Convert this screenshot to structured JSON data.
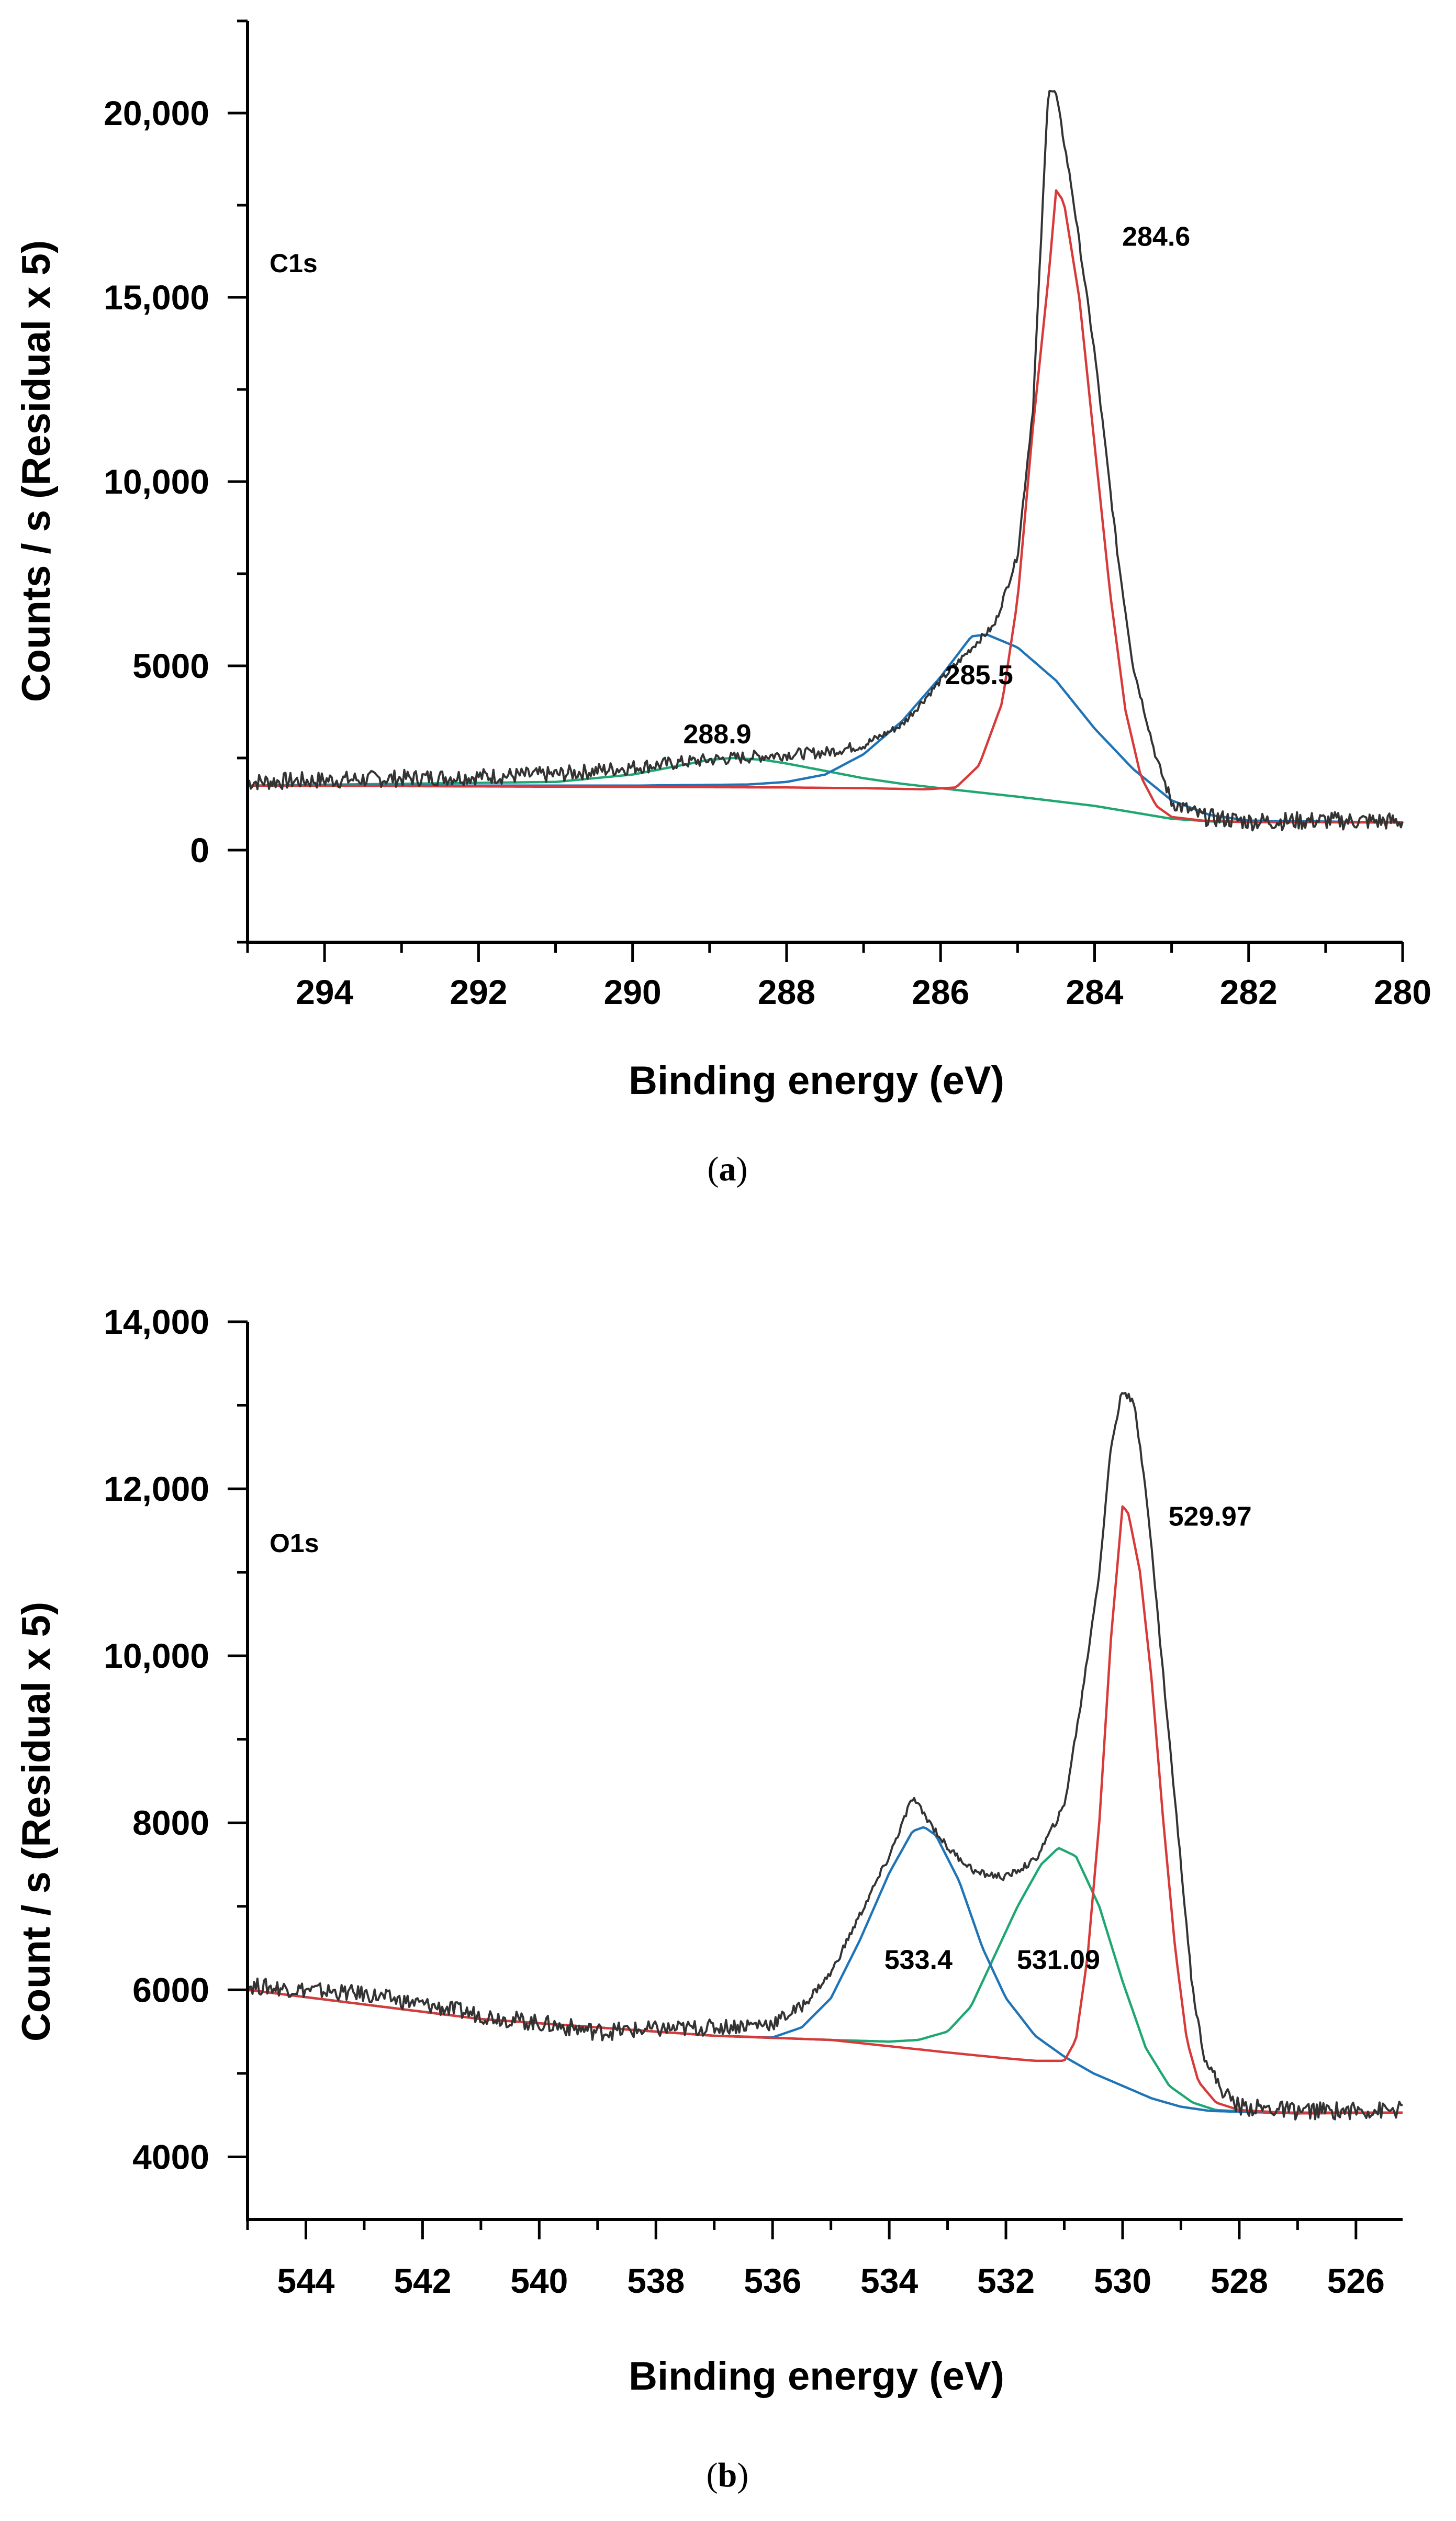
{
  "colors": {
    "envelope": "#333333",
    "red": "#d83a3a",
    "blue": "#1f74b8",
    "green": "#1fa772",
    "axis": "#000000"
  },
  "chart_data": [
    {
      "panel": "a",
      "type": "line",
      "caption": "a",
      "panel_label": "C1s",
      "xlabel": "Binding energy (eV)",
      "ylabel": "Counts / s (Residual x 5)",
      "xlim": [
        295,
        280
      ],
      "ylim": [
        -2500,
        22500
      ],
      "xticks": [
        294,
        292,
        290,
        288,
        286,
        284,
        282,
        280
      ],
      "xtick_labels": [
        "294",
        "292",
        "290",
        "288",
        "286",
        "284",
        "282",
        "280"
      ],
      "yticks": [
        0,
        5000,
        10000,
        15000,
        20000
      ],
      "ytick_labels": [
        "0",
        "5000",
        "10,000",
        "15,000",
        "20,000"
      ],
      "annotations": [
        {
          "text": "284.6",
          "x": 283.2,
          "y": 16400
        },
        {
          "text": "285.5",
          "x": 285.5,
          "y": 4500
        },
        {
          "text": "288.9",
          "x": 288.9,
          "y": 2900
        }
      ],
      "background": [
        [
          295,
          1750
        ],
        [
          290,
          1750
        ],
        [
          288,
          1700
        ],
        [
          286.5,
          1650
        ],
        [
          286,
          1640
        ],
        [
          285,
          1450
        ],
        [
          284,
          1150
        ],
        [
          283,
          850
        ],
        [
          282.5,
          780
        ],
        [
          282,
          760
        ],
        [
          280,
          750
        ]
      ],
      "series": [
        {
          "name": "envelope",
          "color_key": "envelope",
          "noise": true,
          "points": [
            [
              295,
              1850
            ],
            [
              293,
              1950
            ],
            [
              291,
              2050
            ],
            [
              290,
              2250
            ],
            [
              289,
              2450
            ],
            [
              288,
              2600
            ],
            [
              287.5,
              2650
            ],
            [
              287,
              2850
            ],
            [
              286.5,
              3400
            ],
            [
              286,
              4600
            ],
            [
              285.5,
              5700
            ],
            [
              285.3,
              6100
            ],
            [
              285,
              8000
            ],
            [
              284.8,
              12000
            ],
            [
              284.6,
              20700
            ],
            [
              284.5,
              20500
            ],
            [
              284.3,
              18000
            ],
            [
              284,
              13500
            ],
            [
              283.7,
              8000
            ],
            [
              283.5,
              5000
            ],
            [
              283.2,
              2500
            ],
            [
              283,
              1300
            ],
            [
              282.6,
              900
            ],
            [
              282,
              780
            ],
            [
              281,
              800
            ],
            [
              280,
              780
            ]
          ]
        },
        {
          "name": "284.6",
          "color_key": "red",
          "points": [
            [
              295,
              1750
            ],
            [
              288,
              1700
            ],
            [
              287,
              1680
            ],
            [
              286.2,
              1650
            ],
            [
              285.8,
              1700
            ],
            [
              285.5,
              2300
            ],
            [
              285.2,
              4000
            ],
            [
              285,
              6800
            ],
            [
              284.8,
              11500
            ],
            [
              284.6,
              15500
            ],
            [
              284.5,
              17900
            ],
            [
              284.4,
              17600
            ],
            [
              284.2,
              15000
            ],
            [
              284,
              11000
            ],
            [
              283.8,
              7000
            ],
            [
              283.6,
              3800
            ],
            [
              283.4,
              2000
            ],
            [
              283.2,
              1200
            ],
            [
              283,
              900
            ],
            [
              282.6,
              800
            ],
            [
              282,
              760
            ],
            [
              280,
              750
            ]
          ]
        },
        {
          "name": "285.5",
          "color_key": "blue",
          "points": [
            [
              295,
              1750
            ],
            [
              290,
              1750
            ],
            [
              288.5,
              1780
            ],
            [
              288,
              1850
            ],
            [
              287.5,
              2050
            ],
            [
              287,
              2600
            ],
            [
              286.5,
              3500
            ],
            [
              286,
              4700
            ],
            [
              285.6,
              5800
            ],
            [
              285.4,
              5850
            ],
            [
              285,
              5500
            ],
            [
              284.5,
              4600
            ],
            [
              284,
              3300
            ],
            [
              283.5,
              2200
            ],
            [
              283,
              1350
            ],
            [
              282.5,
              950
            ],
            [
              282,
              800
            ],
            [
              280,
              750
            ]
          ]
        },
        {
          "name": "288.9",
          "color_key": "green",
          "points": [
            [
              295,
              1750
            ],
            [
              291,
              1850
            ],
            [
              290,
              2050
            ],
            [
              289.5,
              2250
            ],
            [
              289,
              2450
            ],
            [
              288.7,
              2500
            ],
            [
              288.3,
              2450
            ],
            [
              288,
              2350
            ],
            [
              287.5,
              2150
            ],
            [
              287,
              1950
            ],
            [
              286.5,
              1800
            ],
            [
              286,
              1680
            ],
            [
              285,
              1450
            ],
            [
              284,
              1200
            ],
            [
              283,
              850
            ],
            [
              282.5,
              780
            ],
            [
              282,
              760
            ],
            [
              280,
              750
            ]
          ]
        }
      ]
    },
    {
      "panel": "b",
      "type": "line",
      "caption": "b",
      "panel_label": "O1s",
      "xlabel": "Binding energy (eV)",
      "ylabel": "Count / s (Residual x 5)",
      "xlim": [
        545,
        525.2
      ],
      "ylim": [
        3250,
        14000
      ],
      "xticks": [
        544,
        542,
        540,
        538,
        536,
        534,
        532,
        530,
        528,
        526
      ],
      "xtick_labels": [
        "544",
        "542",
        "540",
        "538",
        "536",
        "534",
        "532",
        "530",
        "528",
        "526"
      ],
      "yticks": [
        4000,
        6000,
        8000,
        10000,
        12000,
        14000
      ],
      "ytick_labels": [
        "4000",
        "6000",
        "8000",
        "10,000",
        "12,000",
        "14,000"
      ],
      "annotations": [
        {
          "text": "529.97",
          "x": 528.5,
          "y": 11560
        },
        {
          "text": "533.4",
          "x": 533.5,
          "y": 6250
        },
        {
          "text": "531.09",
          "x": 531.1,
          "y": 6250
        }
      ],
      "background": [
        [
          545,
          6000
        ],
        [
          543,
          5850
        ],
        [
          541,
          5650
        ],
        [
          539,
          5500
        ],
        [
          537,
          5450
        ],
        [
          536,
          5430
        ],
        [
          535,
          5400
        ],
        [
          534,
          5320
        ],
        [
          533,
          5250
        ],
        [
          532,
          5180
        ],
        [
          531,
          5100
        ],
        [
          530,
          4900
        ],
        [
          529,
          4700
        ],
        [
          528,
          4560
        ],
        [
          527,
          4520
        ],
        [
          525.2,
          4530
        ]
      ],
      "series": [
        {
          "name": "envelope",
          "color_key": "envelope",
          "noise": true,
          "points": [
            [
              545,
              6050
            ],
            [
              543,
              5950
            ],
            [
              541,
              5700
            ],
            [
              539,
              5500
            ],
            [
              537,
              5550
            ],
            [
              536,
              5600
            ],
            [
              535.5,
              5800
            ],
            [
              535,
              6200
            ],
            [
              534.5,
              6900
            ],
            [
              534,
              7600
            ],
            [
              533.6,
              8300
            ],
            [
              533.3,
              8000
            ],
            [
              533,
              7700
            ],
            [
              532.5,
              7400
            ],
            [
              532,
              7350
            ],
            [
              531.5,
              7550
            ],
            [
              531,
              8200
            ],
            [
              530.7,
              9500
            ],
            [
              530.4,
              11000
            ],
            [
              530.2,
              12500
            ],
            [
              530,
              13200
            ],
            [
              529.8,
              13000
            ],
            [
              529.6,
              12000
            ],
            [
              529.4,
              10500
            ],
            [
              529.2,
              9000
            ],
            [
              529,
              7500
            ],
            [
              528.8,
              6000
            ],
            [
              528.6,
              5200
            ],
            [
              528.3,
              4800
            ],
            [
              528,
              4600
            ],
            [
              527,
              4550
            ],
            [
              525.2,
              4560
            ]
          ]
        },
        {
          "name": "529.97",
          "color_key": "red",
          "points": [
            [
              545,
              6000
            ],
            [
              541,
              5650
            ],
            [
              537,
              5450
            ],
            [
              535,
              5400
            ],
            [
              533,
              5250
            ],
            [
              532,
              5180
            ],
            [
              531.5,
              5150
            ],
            [
              531,
              5150
            ],
            [
              530.8,
              5400
            ],
            [
              530.6,
              6400
            ],
            [
              530.4,
              8000
            ],
            [
              530.2,
              10200
            ],
            [
              530,
              11800
            ],
            [
              529.9,
              11700
            ],
            [
              529.7,
              11000
            ],
            [
              529.5,
              9700
            ],
            [
              529.3,
              8000
            ],
            [
              529.1,
              6500
            ],
            [
              528.9,
              5400
            ],
            [
              528.7,
              4900
            ],
            [
              528.4,
              4650
            ],
            [
              528,
              4560
            ],
            [
              527,
              4520
            ],
            [
              525.2,
              4530
            ]
          ]
        },
        {
          "name": "533.4",
          "color_key": "blue",
          "points": [
            [
              545,
              6000
            ],
            [
              541,
              5650
            ],
            [
              537,
              5450
            ],
            [
              536,
              5430
            ],
            [
              535.5,
              5550
            ],
            [
              535,
              5900
            ],
            [
              534.5,
              6600
            ],
            [
              534,
              7400
            ],
            [
              533.6,
              7900
            ],
            [
              533.4,
              7950
            ],
            [
              533.2,
              7850
            ],
            [
              532.8,
              7300
            ],
            [
              532.4,
              6500
            ],
            [
              532,
              5900
            ],
            [
              531.5,
              5450
            ],
            [
              531,
              5200
            ],
            [
              530.5,
              5000
            ],
            [
              530,
              4850
            ],
            [
              529.5,
              4700
            ],
            [
              529,
              4600
            ],
            [
              528.5,
              4550
            ],
            [
              527,
              4520
            ],
            [
              525.2,
              4530
            ]
          ]
        },
        {
          "name": "531.09",
          "color_key": "green",
          "points": [
            [
              545,
              6000
            ],
            [
              541,
              5650
            ],
            [
              537,
              5450
            ],
            [
              535,
              5400
            ],
            [
              534,
              5380
            ],
            [
              533.5,
              5400
            ],
            [
              533,
              5500
            ],
            [
              532.6,
              5800
            ],
            [
              532.2,
              6400
            ],
            [
              531.8,
              7000
            ],
            [
              531.4,
              7500
            ],
            [
              531.1,
              7700
            ],
            [
              530.8,
              7600
            ],
            [
              530.4,
              7000
            ],
            [
              530,
              6100
            ],
            [
              529.6,
              5300
            ],
            [
              529.2,
              4850
            ],
            [
              528.8,
              4650
            ],
            [
              528.4,
              4560
            ],
            [
              527.5,
              4530
            ],
            [
              525.2,
              4530
            ]
          ]
        }
      ]
    }
  ]
}
